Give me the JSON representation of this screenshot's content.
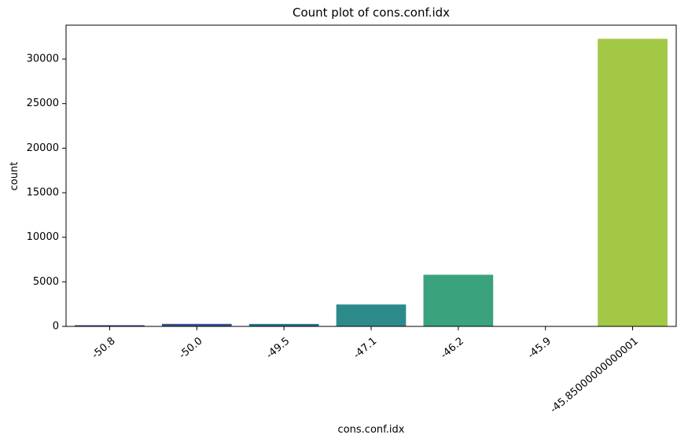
{
  "chart_data": {
    "type": "bar",
    "title": "Count plot of cons.conf.idx",
    "xlabel": "cons.conf.idx",
    "ylabel": "count",
    "categories": [
      "-50.8",
      "-50.0",
      "-49.5",
      "-47.1",
      "-46.2",
      "-45.9",
      "-45.85000000000001"
    ],
    "values": [
      128,
      282,
      276,
      2458,
      5794,
      10,
      32270
    ],
    "colors": [
      "#472c7a",
      "#3b518b",
      "#2c718e",
      "#2d8a8b",
      "#3aa27d",
      "#27ad81",
      "#a3c845"
    ],
    "ylim": [
      0,
      33800
    ],
    "yticks": [
      0,
      5000,
      10000,
      15000,
      20000,
      25000,
      30000
    ],
    "xtick_rotation": 40,
    "grid": false,
    "legend": "none"
  }
}
